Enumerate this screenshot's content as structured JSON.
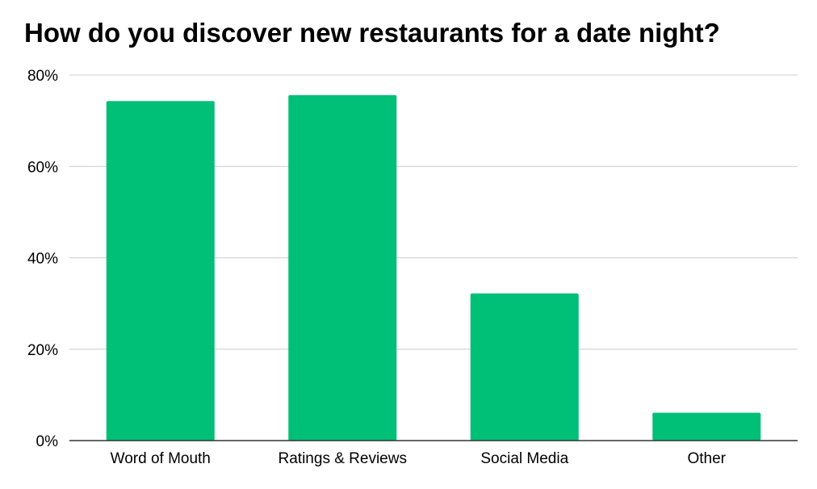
{
  "chart_data": {
    "type": "bar",
    "title": "How do you discover new restaurants for a date night?",
    "xlabel": "",
    "ylabel": "",
    "categories": [
      "Word of Mouth",
      "Ratings & Reviews",
      "Social Media",
      "Other"
    ],
    "values": [
      74.3,
      75.6,
      32.2,
      6.1
    ],
    "ylim": [
      0,
      80
    ],
    "yticks": [
      0,
      20,
      40,
      60,
      80
    ],
    "ytick_labels": [
      "0%",
      "20%",
      "40%",
      "60%",
      "80%"
    ],
    "bar_color": "#00BF76",
    "grid": true,
    "legend": "none"
  }
}
